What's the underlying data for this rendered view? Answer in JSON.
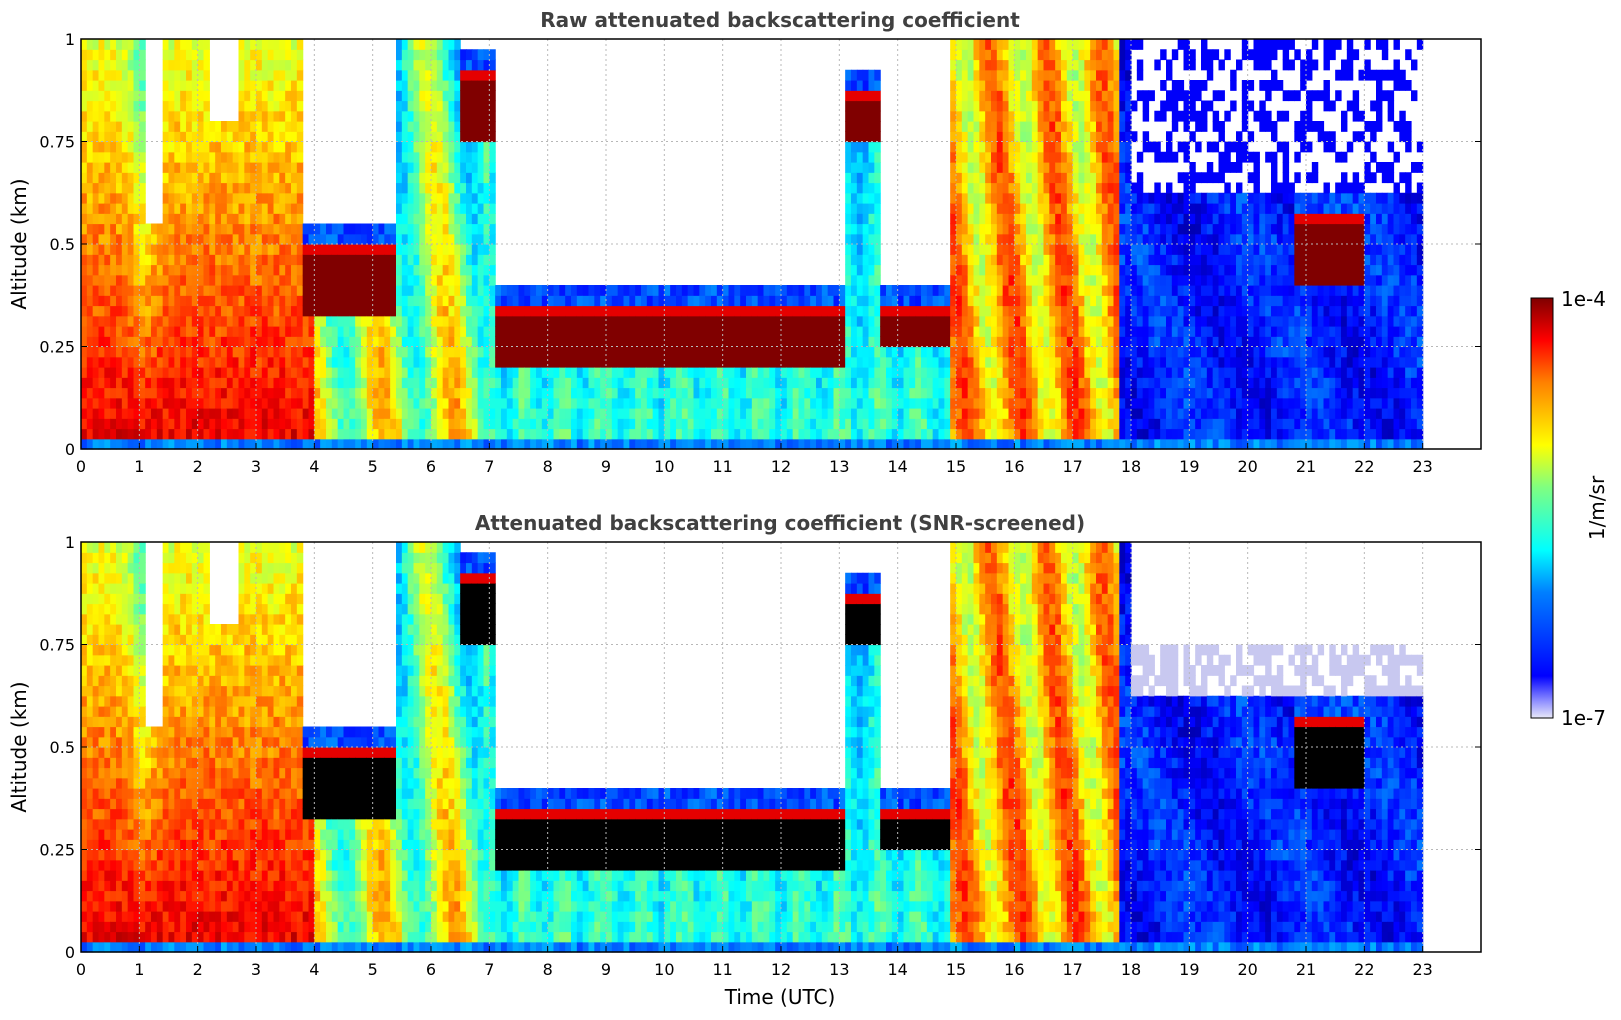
{
  "chart_data": [
    {
      "type": "heatmap",
      "title": "Raw attenuated backscattering coefficient",
      "ylabel": "Altitude (km)",
      "xlabel": "",
      "xlim": [
        0,
        24
      ],
      "ylim": [
        0,
        1
      ],
      "xticks": [
        "0",
        "1",
        "2",
        "3",
        "4",
        "5",
        "6",
        "7",
        "8",
        "9",
        "10",
        "11",
        "12",
        "13",
        "14",
        "15",
        "16",
        "17",
        "18",
        "19",
        "20",
        "21",
        "22",
        "23"
      ],
      "yticks": [
        "0",
        "0.25",
        "0.5",
        "0.75",
        "1"
      ],
      "data_extent_hours": [
        0,
        23
      ],
      "grid": true,
      "cloud_layers": [
        {
          "start_h": 3.8,
          "end_h": 5.4,
          "base_km": 0.33,
          "top_km": 0.5
        },
        {
          "start_h": 6.5,
          "end_h": 7.1,
          "base_km": 0.76,
          "top_km": 0.93
        },
        {
          "start_h": 7.1,
          "end_h": 13.1,
          "base_km": 0.2,
          "top_km": 0.35
        },
        {
          "start_h": 13.1,
          "end_h": 13.7,
          "base_km": 0.74,
          "top_km": 0.88
        },
        {
          "start_h": 13.7,
          "end_h": 14.9,
          "base_km": 0.25,
          "top_km": 0.35
        },
        {
          "start_h": 20.8,
          "end_h": 22.0,
          "base_km": 0.4,
          "top_km": 0.58
        }
      ]
    },
    {
      "type": "heatmap",
      "title": "Attenuated backscattering coefficient (SNR-screened)",
      "ylabel": "Altitude (km)",
      "xlabel": "Time (UTC)",
      "xlim": [
        0,
        24
      ],
      "ylim": [
        0,
        1
      ],
      "xticks": [
        "0",
        "1",
        "2",
        "3",
        "4",
        "5",
        "6",
        "7",
        "8",
        "9",
        "10",
        "11",
        "12",
        "13",
        "14",
        "15",
        "16",
        "17",
        "18",
        "19",
        "20",
        "21",
        "22",
        "23"
      ],
      "yticks": [
        "0",
        "0.25",
        "0.5",
        "0.75",
        "1"
      ],
      "data_extent_hours": [
        0,
        23
      ],
      "grid": true,
      "saturated_color": "#000000"
    }
  ],
  "colorbar": {
    "label": "1/m/sr",
    "max_label": "1e-4",
    "min_label": "1e-7",
    "colormap": "jet",
    "low_end_color": "#e8e8f8",
    "high_end_color": "#7f0000"
  }
}
